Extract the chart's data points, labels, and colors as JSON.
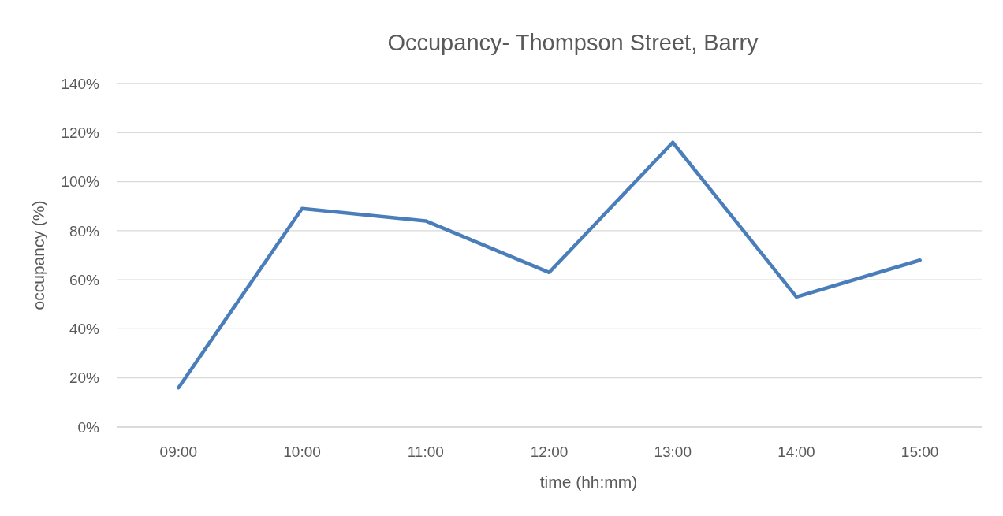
{
  "chart_data": {
    "type": "line",
    "title": "Occupancy- Thompson Street, Barry",
    "xlabel": "time (hh:mm)",
    "ylabel": "occupancy (%)",
    "categories": [
      "09:00",
      "10:00",
      "11:00",
      "12:00",
      "13:00",
      "14:00",
      "15:00"
    ],
    "series": [
      {
        "color": "#4a7ebb",
        "values": [
          16,
          89,
          84,
          63,
          116,
          53,
          68
        ]
      }
    ],
    "ylim": [
      0,
      140
    ],
    "yticks": [
      {
        "value": 0,
        "label": "0%"
      },
      {
        "value": 20,
        "label": "20%"
      },
      {
        "value": 40,
        "label": "40%"
      },
      {
        "value": 60,
        "label": "60%"
      },
      {
        "value": 80,
        "label": "80%"
      },
      {
        "value": 100,
        "label": "100%"
      },
      {
        "value": 120,
        "label": "120%"
      },
      {
        "value": 140,
        "label": "140%"
      }
    ],
    "grid": "y"
  }
}
